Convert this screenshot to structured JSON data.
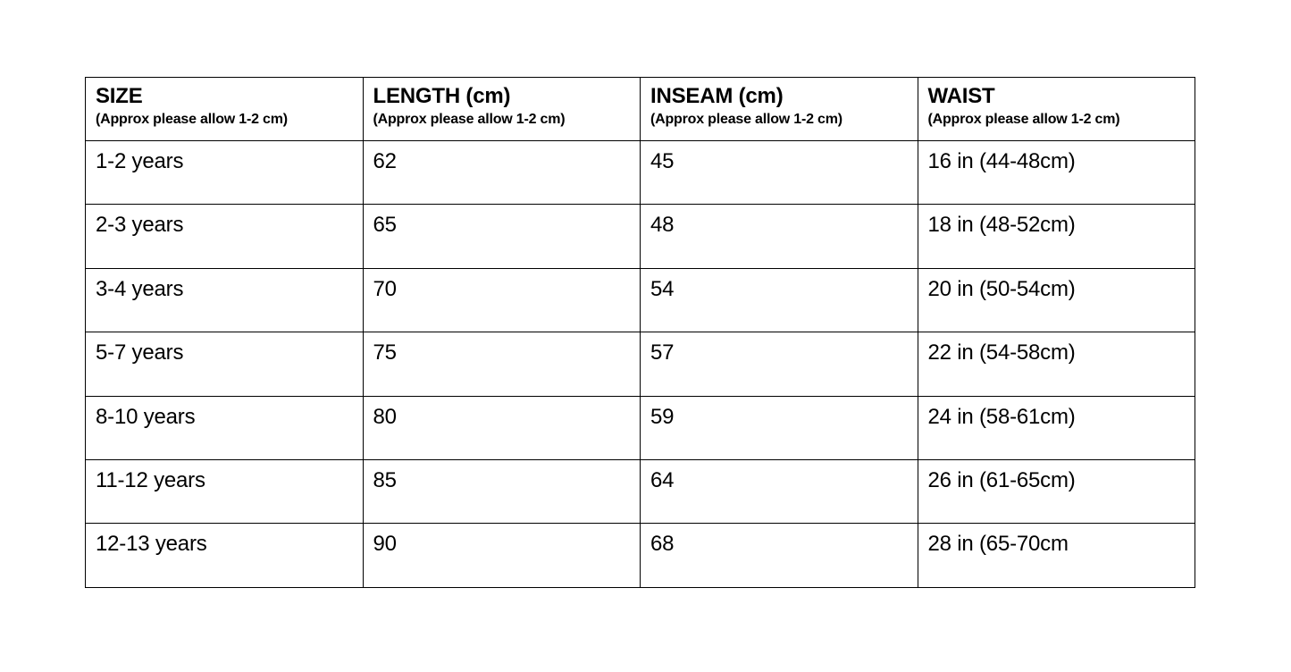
{
  "table": {
    "headers": [
      {
        "title": "SIZE",
        "subtitle": "(Approx please allow 1-2 cm)"
      },
      {
        "title": "LENGTH (cm)",
        "subtitle": "(Approx please allow 1-2 cm)"
      },
      {
        "title": "INSEAM (cm)",
        "subtitle": "(Approx please allow 1-2 cm)"
      },
      {
        "title": "WAIST",
        "subtitle": "(Approx please allow 1-2 cm)"
      }
    ],
    "rows": [
      [
        "1-2 years",
        "62",
        "45",
        "16 in (44-48cm)"
      ],
      [
        "2-3 years",
        "65",
        "48",
        "18 in (48-52cm)"
      ],
      [
        "3-4 years",
        "70",
        "54",
        "20 in (50-54cm)"
      ],
      [
        "5-7 years",
        "75",
        "57",
        "22 in (54-58cm)"
      ],
      [
        "8-10 years",
        "80",
        "59",
        "24 in (58-61cm)"
      ],
      [
        "11-12 years",
        "85",
        "64",
        "26 in (61-65cm)"
      ],
      [
        "12-13 years",
        "90",
        "68",
        "28 in (65-70cm"
      ]
    ]
  }
}
